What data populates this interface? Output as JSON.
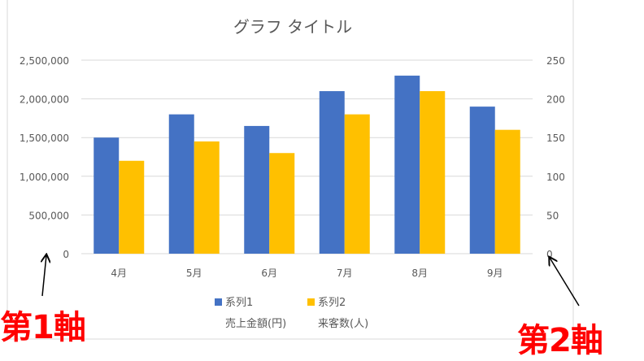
{
  "chart_data": {
    "type": "bar",
    "title": "グラフ タイトル",
    "categories": [
      "4月",
      "5月",
      "6月",
      "7月",
      "8月",
      "9月"
    ],
    "series": [
      {
        "name": "系列1",
        "axis": "primary",
        "color": "#4472c4",
        "values": [
          1500000,
          1800000,
          1650000,
          2100000,
          2300000,
          1900000
        ]
      },
      {
        "name": "系列2",
        "axis": "secondary",
        "color": "#ffc000",
        "values": [
          120,
          145,
          130,
          180,
          210,
          160
        ]
      }
    ],
    "y_primary": {
      "ylim": [
        0,
        2500000
      ],
      "ticks": [
        "0",
        "500,000",
        "1,000,000",
        "1,500,000",
        "2,000,000",
        "2,500,000"
      ]
    },
    "y_secondary": {
      "ylim": [
        0,
        250
      ],
      "ticks": [
        "0",
        "50",
        "100",
        "150",
        "200",
        "250"
      ]
    },
    "grid": true,
    "legend": {
      "placement": "bottom",
      "entries": [
        "系列1",
        "系列2"
      ],
      "sublabels": [
        "売上金額(円)",
        "来客数(人)"
      ]
    }
  },
  "annotations": {
    "primary_axis": "第1軸",
    "secondary_axis": "第2軸"
  }
}
